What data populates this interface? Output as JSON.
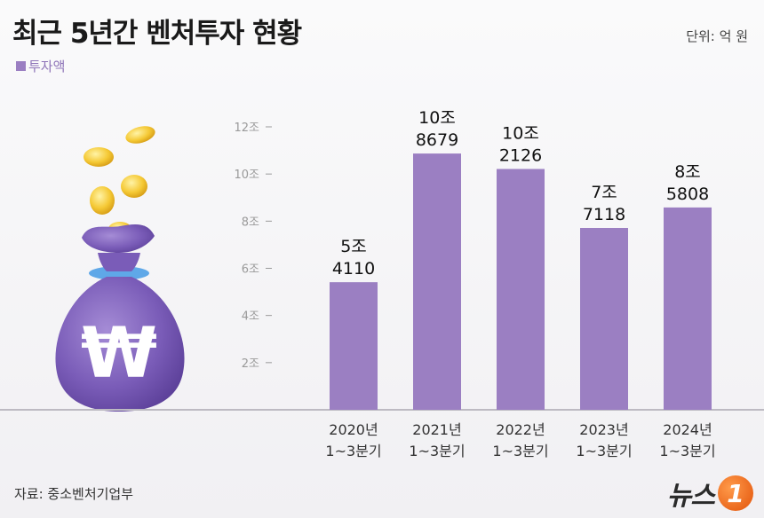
{
  "header": {
    "title": "최근 5년간 벤처투자 현황",
    "unit": "단위: 억 원"
  },
  "legend": {
    "label": "투자액",
    "color": "#9b7fc2"
  },
  "footer": {
    "source": "자료: 중소벤처기업부",
    "logo_text": "뉴스",
    "logo_badge": "1"
  },
  "illustration": {
    "symbol": "₩",
    "name": "money-bag-icon"
  },
  "chart_data": {
    "type": "bar",
    "title": "최근 5년간 벤처투자 현황",
    "xlabel": "",
    "ylabel": "",
    "unit": "억 원",
    "categories": [
      "2020년\n1~3분기",
      "2021년\n1~3분기",
      "2022년\n1~3분기",
      "2023년\n1~3분기",
      "2024년\n1~3분기"
    ],
    "values": [
      54110,
      108679,
      102126,
      77118,
      85808
    ],
    "value_labels": [
      [
        "5조",
        "4110"
      ],
      [
        "10조",
        "8679"
      ],
      [
        "10조",
        "2126"
      ],
      [
        "7조",
        "7118"
      ],
      [
        "8조",
        "5808"
      ]
    ],
    "ylim": [
      0,
      120000
    ],
    "yticks": [
      {
        "value": 20000,
        "label": "2조"
      },
      {
        "value": 40000,
        "label": "4조"
      },
      {
        "value": 60000,
        "label": "6조"
      },
      {
        "value": 80000,
        "label": "8조"
      },
      {
        "value": 100000,
        "label": "10조"
      },
      {
        "value": 120000,
        "label": "12조"
      }
    ],
    "bar_color": "#9b7fc2",
    "grid": false,
    "legend_position": "top-left"
  }
}
